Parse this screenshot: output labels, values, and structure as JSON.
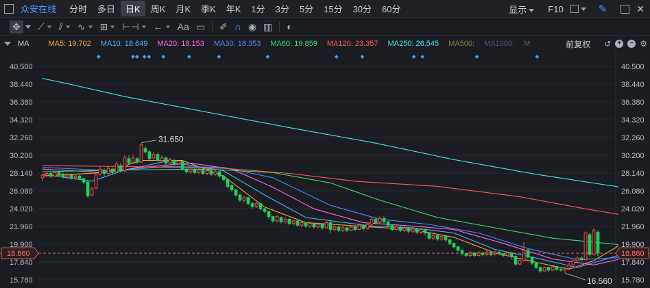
{
  "topbar": {
    "app_name": "众安在线",
    "periods": [
      {
        "label": "分时",
        "active": false
      },
      {
        "label": "多日",
        "active": false
      },
      {
        "label": "日K",
        "active": true
      },
      {
        "label": "周K",
        "active": false
      },
      {
        "label": "月K",
        "active": false
      },
      {
        "label": "季K",
        "active": false
      },
      {
        "label": "年K",
        "active": false
      },
      {
        "label": "1分",
        "active": false
      },
      {
        "label": "3分",
        "active": false
      },
      {
        "label": "5分",
        "active": false
      },
      {
        "label": "15分",
        "active": false
      },
      {
        "label": "30分",
        "active": false
      },
      {
        "label": "60分",
        "active": false
      }
    ],
    "display_label": "显示",
    "f10_label": "F10",
    "close_glyph": "✕"
  },
  "toolbar": {
    "text_tool_label": "Aa"
  },
  "ma_bar": {
    "label": "MA",
    "items": [
      {
        "text": "MA5: 19.702",
        "color": "#ffa23a"
      },
      {
        "text": "MA10: 18.649",
        "color": "#4ab3ff"
      },
      {
        "text": "MA20: 18.153",
        "color": "#ff6ae6"
      },
      {
        "text": "MA30: 18.353",
        "color": "#4a86ff"
      },
      {
        "text": "MA60: 19.859",
        "color": "#3fd86a"
      },
      {
        "text": "MA120: 23.357",
        "color": "#ff5a5a"
      },
      {
        "text": "MA250: 26.545",
        "color": "#3fe6e6"
      },
      {
        "text": "MA500:",
        "color": "#8a7a3a"
      },
      {
        "text": "MA1000:",
        "color": "#4a5a8a"
      },
      {
        "text": "M",
        "color": "#5a5f68"
      }
    ],
    "adjust_label": "前复权",
    "plus_glyph": "+",
    "minus_glyph": "−"
  },
  "chart_data": {
    "type": "candlestick",
    "y_ticks": [
      "40.500",
      "38.440",
      "36.380",
      "34.320",
      "32.260",
      "30.200",
      "28.140",
      "26.080",
      "24.020",
      "21.960",
      "19.900",
      "17.840",
      "15.780"
    ],
    "y_range": [
      15.78,
      40.5
    ],
    "current_price": 18.86,
    "current_price_label": "18.860",
    "high_label": "31.650",
    "low_label": "16.560",
    "colors": {
      "up": "#ff4a4a",
      "down": "#1fcf5a",
      "price_line": "#e05a5a",
      "marker": "#4a9cff"
    },
    "marker_x_ratios": [
      0.105,
      0.165,
      0.172,
      0.185,
      0.193,
      0.218,
      0.263,
      0.315,
      0.4,
      0.52,
      0.565,
      0.655,
      0.67,
      0.765,
      0.87
    ],
    "candles": [
      [
        27.6,
        27.9,
        27.2,
        28.0
      ],
      [
        27.9,
        28.1,
        27.7,
        28.3
      ],
      [
        28.1,
        27.8,
        27.6,
        28.3
      ],
      [
        27.8,
        28.2,
        27.7,
        28.4
      ],
      [
        28.2,
        28.0,
        27.8,
        28.4
      ],
      [
        28.0,
        27.7,
        27.5,
        28.2
      ],
      [
        27.7,
        27.9,
        27.5,
        28.1
      ],
      [
        27.9,
        27.6,
        27.4,
        28.0
      ],
      [
        27.6,
        27.8,
        27.4,
        28.0
      ],
      [
        27.8,
        27.5,
        27.3,
        27.9
      ],
      [
        27.5,
        27.1,
        26.9,
        27.6
      ],
      [
        27.1,
        25.5,
        25.3,
        27.2
      ],
      [
        25.6,
        26.3,
        25.5,
        26.6
      ],
      [
        26.4,
        28.0,
        26.3,
        28.3
      ],
      [
        28.0,
        28.6,
        27.8,
        28.9
      ],
      [
        28.4,
        28.1,
        27.8,
        28.7
      ],
      [
        28.1,
        28.7,
        27.9,
        29.0
      ],
      [
        28.6,
        28.2,
        27.9,
        28.8
      ],
      [
        28.3,
        29.2,
        28.1,
        29.5
      ],
      [
        29.0,
        28.4,
        28.2,
        29.3
      ],
      [
        28.4,
        30.0,
        28.2,
        30.2
      ],
      [
        29.8,
        29.3,
        29.1,
        30.2
      ],
      [
        29.4,
        29.9,
        29.2,
        30.3
      ],
      [
        29.8,
        29.4,
        29.2,
        30.0
      ],
      [
        29.4,
        31.4,
        29.3,
        31.65
      ],
      [
        31.0,
        30.6,
        30.4,
        31.3
      ],
      [
        30.6,
        29.8,
        29.5,
        30.8
      ],
      [
        29.9,
        30.3,
        29.7,
        30.6
      ],
      [
        30.3,
        29.6,
        29.4,
        30.5
      ],
      [
        29.6,
        29.9,
        29.4,
        30.2
      ],
      [
        29.9,
        29.3,
        29.1,
        30.0
      ],
      [
        29.3,
        29.7,
        29.1,
        29.9
      ],
      [
        29.6,
        29.2,
        29.0,
        29.8
      ],
      [
        29.2,
        29.5,
        29.0,
        29.7
      ],
      [
        29.5,
        28.6,
        28.4,
        29.6
      ],
      [
        28.6,
        28.3,
        28.1,
        28.8
      ],
      [
        28.3,
        28.6,
        28.1,
        28.8
      ],
      [
        28.6,
        28.2,
        28.0,
        28.7
      ],
      [
        28.2,
        28.5,
        28.0,
        28.7
      ],
      [
        28.5,
        28.1,
        27.9,
        28.6
      ],
      [
        28.1,
        28.4,
        27.9,
        28.6
      ],
      [
        28.4,
        28.0,
        27.8,
        28.5
      ],
      [
        28.0,
        28.3,
        27.8,
        28.5
      ],
      [
        28.3,
        27.8,
        27.6,
        28.4
      ],
      [
        27.8,
        27.4,
        27.2,
        27.9
      ],
      [
        27.4,
        26.6,
        26.4,
        27.5
      ],
      [
        26.7,
        26.2,
        26.0,
        26.8
      ],
      [
        26.2,
        25.6,
        25.4,
        26.3
      ],
      [
        25.6,
        25.0,
        24.8,
        25.7
      ],
      [
        25.0,
        25.3,
        24.7,
        25.5
      ],
      [
        25.3,
        24.6,
        24.4,
        25.4
      ],
      [
        24.6,
        24.3,
        24.0,
        24.8
      ],
      [
        24.3,
        24.6,
        24.1,
        24.8
      ],
      [
        24.6,
        24.0,
        23.8,
        24.7
      ],
      [
        24.0,
        23.7,
        23.5,
        24.1
      ],
      [
        23.7,
        23.1,
        22.8,
        23.8
      ],
      [
        23.1,
        22.6,
        22.4,
        23.2
      ],
      [
        22.6,
        23.1,
        22.4,
        23.3
      ],
      [
        23.0,
        22.5,
        22.3,
        23.1
      ],
      [
        22.5,
        22.8,
        22.3,
        23.0
      ],
      [
        22.8,
        22.3,
        22.1,
        22.9
      ],
      [
        22.3,
        22.6,
        22.1,
        22.8
      ],
      [
        22.6,
        22.1,
        21.9,
        22.7
      ],
      [
        22.1,
        22.4,
        21.9,
        22.6
      ],
      [
        22.4,
        22.0,
        21.8,
        22.5
      ],
      [
        22.0,
        22.3,
        21.8,
        22.5
      ],
      [
        22.3,
        21.9,
        21.7,
        22.4
      ],
      [
        21.9,
        22.2,
        21.7,
        22.4
      ],
      [
        22.2,
        21.8,
        21.6,
        22.3
      ],
      [
        21.8,
        22.4,
        21.7,
        22.6
      ],
      [
        22.4,
        21.6,
        21.2,
        22.7
      ],
      [
        21.6,
        21.9,
        21.4,
        22.1
      ],
      [
        21.9,
        21.5,
        21.3,
        22.0
      ],
      [
        21.5,
        21.8,
        21.3,
        22.0
      ],
      [
        21.8,
        21.5,
        21.3,
        21.9
      ],
      [
        21.5,
        21.9,
        21.4,
        22.1
      ],
      [
        21.9,
        21.6,
        21.4,
        22.0
      ],
      [
        21.6,
        22.1,
        21.5,
        22.3
      ],
      [
        22.1,
        21.7,
        21.5,
        22.2
      ],
      [
        21.7,
        22.2,
        21.6,
        22.4
      ],
      [
        22.2,
        22.8,
        22.0,
        23.0
      ],
      [
        22.8,
        22.4,
        22.2,
        23.0
      ],
      [
        22.4,
        22.9,
        22.2,
        23.2
      ],
      [
        22.9,
        22.5,
        22.3,
        23.1
      ],
      [
        22.5,
        22.1,
        21.9,
        22.6
      ],
      [
        22.1,
        21.6,
        21.4,
        22.2
      ],
      [
        21.6,
        21.9,
        21.5,
        22.1
      ],
      [
        21.9,
        21.5,
        21.3,
        22.0
      ],
      [
        21.5,
        21.8,
        21.3,
        22.0
      ],
      [
        21.8,
        21.4,
        21.2,
        21.9
      ],
      [
        21.4,
        21.7,
        21.2,
        21.9
      ],
      [
        21.7,
        21.3,
        21.1,
        21.8
      ],
      [
        21.3,
        21.6,
        21.1,
        21.8
      ],
      [
        21.6,
        21.2,
        21.0,
        21.7
      ],
      [
        21.2,
        20.6,
        20.4,
        21.3
      ],
      [
        20.6,
        20.9,
        20.4,
        21.1
      ],
      [
        20.9,
        20.5,
        20.3,
        21.0
      ],
      [
        20.5,
        20.8,
        20.3,
        21.0
      ],
      [
        20.8,
        20.4,
        20.2,
        20.9
      ],
      [
        20.4,
        20.0,
        19.8,
        20.5
      ],
      [
        20.0,
        19.6,
        19.4,
        20.1
      ],
      [
        19.6,
        19.2,
        19.0,
        19.7
      ],
      [
        19.2,
        18.8,
        18.6,
        19.3
      ],
      [
        18.8,
        18.6,
        18.4,
        18.9
      ],
      [
        18.6,
        18.9,
        18.4,
        19.1
      ],
      [
        18.9,
        18.6,
        18.4,
        19.0
      ],
      [
        18.6,
        18.9,
        18.5,
        19.1
      ],
      [
        18.9,
        18.7,
        18.5,
        19.0
      ],
      [
        18.7,
        19.0,
        18.5,
        19.2
      ],
      [
        19.0,
        18.7,
        18.5,
        19.1
      ],
      [
        18.7,
        19.0,
        18.6,
        19.2
      ],
      [
        19.0,
        18.8,
        18.6,
        19.1
      ],
      [
        18.8,
        18.6,
        18.4,
        18.9
      ],
      [
        18.6,
        18.9,
        18.5,
        19.0
      ],
      [
        18.9,
        18.5,
        18.2,
        19.0
      ],
      [
        18.5,
        17.6,
        17.4,
        18.6
      ],
      [
        17.6,
        18.0,
        17.5,
        18.2
      ],
      [
        18.0,
        19.2,
        17.9,
        20.2
      ],
      [
        19.2,
        18.4,
        18.2,
        19.4
      ],
      [
        18.4,
        17.7,
        17.5,
        18.5
      ],
      [
        17.7,
        17.2,
        17.0,
        17.8
      ],
      [
        17.2,
        16.8,
        16.6,
        17.3
      ],
      [
        16.8,
        17.2,
        16.7,
        17.3
      ],
      [
        17.2,
        16.9,
        16.7,
        17.3
      ],
      [
        16.9,
        17.3,
        16.8,
        17.4
      ],
      [
        17.3,
        17.0,
        16.8,
        17.4
      ],
      [
        17.0,
        16.9,
        16.7,
        17.2
      ],
      [
        16.9,
        17.1,
        16.56,
        17.3
      ],
      [
        17.1,
        17.5,
        17.0,
        17.7
      ],
      [
        17.5,
        18.0,
        17.4,
        18.2
      ],
      [
        18.0,
        18.3,
        17.8,
        18.5
      ],
      [
        18.3,
        18.1,
        17.9,
        18.5
      ],
      [
        18.1,
        21.2,
        18.0,
        21.4
      ],
      [
        21.0,
        18.7,
        18.5,
        21.2
      ],
      [
        18.7,
        21.5,
        18.6,
        21.8
      ],
      [
        21.3,
        18.86,
        18.5,
        21.5
      ]
    ],
    "ma_lines": [
      {
        "name": "MA5",
        "color": "#ffa23a",
        "points": [
          [
            0,
            27.8
          ],
          [
            15,
            28.2
          ],
          [
            24,
            29.6
          ],
          [
            34,
            29.6
          ],
          [
            44,
            27.8
          ],
          [
            54,
            24.2
          ],
          [
            64,
            22.4
          ],
          [
            80,
            21.9
          ],
          [
            90,
            21.6
          ],
          [
            100,
            20.7
          ],
          [
            110,
            18.9
          ],
          [
            120,
            17.8
          ],
          [
            128,
            17.0
          ],
          [
            134,
            18.0
          ],
          [
            140,
            19.7
          ]
        ]
      },
      {
        "name": "MA10",
        "color": "#4ab3ff",
        "points": [
          [
            0,
            28.0
          ],
          [
            12,
            27.2
          ],
          [
            20,
            28.5
          ],
          [
            30,
            29.5
          ],
          [
            44,
            28.4
          ],
          [
            54,
            25.6
          ],
          [
            64,
            23.0
          ],
          [
            80,
            22.0
          ],
          [
            90,
            21.8
          ],
          [
            100,
            21.2
          ],
          [
            110,
            19.3
          ],
          [
            120,
            18.3
          ],
          [
            130,
            17.2
          ],
          [
            140,
            18.6
          ]
        ]
      },
      {
        "name": "MA20",
        "color": "#ff6ae6",
        "points": [
          [
            0,
            28.6
          ],
          [
            15,
            28.2
          ],
          [
            24,
            28.8
          ],
          [
            36,
            29.3
          ],
          [
            46,
            28.6
          ],
          [
            56,
            26.5
          ],
          [
            66,
            24.0
          ],
          [
            78,
            22.4
          ],
          [
            90,
            22.0
          ],
          [
            100,
            21.6
          ],
          [
            112,
            20.0
          ],
          [
            124,
            18.2
          ],
          [
            134,
            17.5
          ],
          [
            140,
            18.15
          ]
        ]
      },
      {
        "name": "MA30",
        "color": "#4a86ff",
        "points": [
          [
            0,
            28.8
          ],
          [
            18,
            28.4
          ],
          [
            30,
            28.9
          ],
          [
            44,
            28.8
          ],
          [
            56,
            27.6
          ],
          [
            70,
            24.4
          ],
          [
            82,
            22.8
          ],
          [
            94,
            22.2
          ],
          [
            106,
            21.2
          ],
          [
            118,
            19.4
          ],
          [
            130,
            18.1
          ],
          [
            140,
            18.35
          ]
        ]
      },
      {
        "name": "MA60",
        "color": "#3fd86a",
        "points": [
          [
            0,
            28.3
          ],
          [
            20,
            28.5
          ],
          [
            40,
            28.6
          ],
          [
            56,
            28.2
          ],
          [
            70,
            27.0
          ],
          [
            82,
            25.0
          ],
          [
            96,
            23.0
          ],
          [
            110,
            21.8
          ],
          [
            124,
            20.6
          ],
          [
            140,
            19.86
          ]
        ]
      },
      {
        "name": "MA120",
        "color": "#ff5a5a",
        "points": [
          [
            0,
            29.0
          ],
          [
            20,
            28.9
          ],
          [
            44,
            28.7
          ],
          [
            60,
            28.1
          ],
          [
            76,
            27.2
          ],
          [
            96,
            26.6
          ],
          [
            116,
            25.4
          ],
          [
            132,
            24.0
          ],
          [
            140,
            23.36
          ]
        ]
      },
      {
        "name": "MA250",
        "color": "#3fe6e6",
        "points": [
          [
            0,
            39.1
          ],
          [
            6,
            38.5
          ],
          [
            20,
            37.0
          ],
          [
            40,
            35.2
          ],
          [
            60,
            33.4
          ],
          [
            80,
            31.7
          ],
          [
            100,
            29.7
          ],
          [
            120,
            28.0
          ],
          [
            140,
            26.55
          ]
        ]
      }
    ]
  }
}
